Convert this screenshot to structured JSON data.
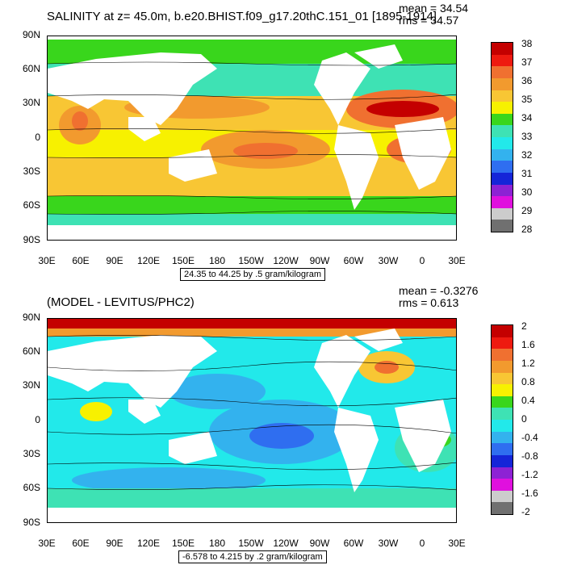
{
  "top": {
    "title": "SALINITY at z=  45.0m, b.e20.BHIST.f09_g17.20thC.151_01 [1895-1914]",
    "mean": "mean = 34.54",
    "rms": "rms = 34.57",
    "info": "24.35 to 44.25 by .5 gram/kilogram",
    "lat_labels": [
      "90N",
      "60N",
      "30N",
      "0",
      "30S",
      "60S",
      "90S"
    ],
    "lon_labels": [
      "30E",
      "60E",
      "90E",
      "120E",
      "150E",
      "180",
      "150W",
      "120W",
      "90W",
      "60W",
      "30W",
      "0",
      "30E"
    ],
    "colorbar": {
      "labels": [
        "38",
        "37",
        "36",
        "35",
        "34",
        "33",
        "32",
        "31",
        "30",
        "29",
        "28"
      ],
      "colors": [
        "#c40000",
        "#ee1a10",
        "#f07030",
        "#f29a2e",
        "#f8c634",
        "#f7f100",
        "#39d61c",
        "#3ee2b4",
        "#22e9ea",
        "#33b2ee",
        "#2f6ef0",
        "#1525d8",
        "#8d22d4",
        "#e010de",
        "#cccccc",
        "#707070"
      ]
    }
  },
  "bottom": {
    "title": "(MODEL - LEVITUS/PHC2)",
    "mean": "mean = -0.3276",
    "rms": "rms = 0.613",
    "info": "-6.578 to 4.215 by .2 gram/kilogram",
    "lat_labels": [
      "90N",
      "60N",
      "30N",
      "0",
      "30S",
      "60S",
      "90S"
    ],
    "lon_labels": [
      "30E",
      "60E",
      "90E",
      "120E",
      "150E",
      "180",
      "150W",
      "120W",
      "90W",
      "60W",
      "30W",
      "0",
      "30E"
    ],
    "colorbar": {
      "labels": [
        "2",
        "1.6",
        "1.2",
        "0.8",
        "0.4",
        "0",
        "-0.4",
        "-0.8",
        "-1.2",
        "-1.6",
        "-2"
      ],
      "colors": [
        "#c40000",
        "#ee1a10",
        "#f07030",
        "#f29a2e",
        "#f8c634",
        "#f7f100",
        "#39d61c",
        "#3ee2b4",
        "#22e9ea",
        "#33b2ee",
        "#2f6ef0",
        "#1525d8",
        "#8d22d4",
        "#e010de",
        "#cccccc",
        "#707070"
      ]
    }
  }
}
